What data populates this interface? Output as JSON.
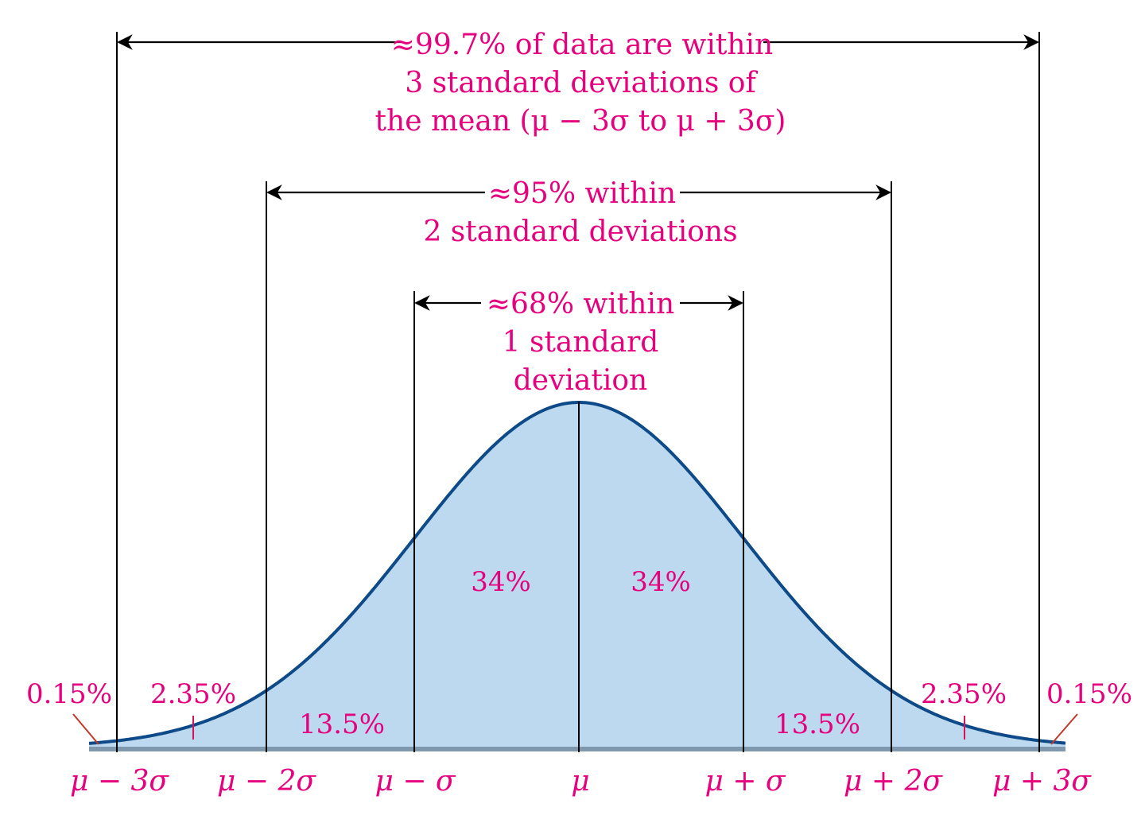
{
  "colors": {
    "label": "#e6007e",
    "curve_fill": "#bcd9ef",
    "curve_stroke": "#0d4a87",
    "lines": "#000000",
    "baseline": "#7f98ad"
  },
  "brackets": {
    "b3": {
      "lines": [
        "≈99.7% of data are within",
        "3 standard deviations of",
        "the mean (μ − 3σ to μ + 3σ)"
      ]
    },
    "b2": {
      "lines": [
        "≈95% within",
        "2 standard deviations"
      ]
    },
    "b1": {
      "lines": [
        "≈68% within",
        "1 standard",
        "deviation"
      ]
    }
  },
  "regions": [
    {
      "id": "tail-left",
      "label": "0.15%"
    },
    {
      "id": "band-left-2-3",
      "label": "2.35%"
    },
    {
      "id": "band-left-1-2",
      "label": "13.5%"
    },
    {
      "id": "band-left-0-1",
      "label": "34%"
    },
    {
      "id": "band-right-0-1",
      "label": "34%"
    },
    {
      "id": "band-right-1-2",
      "label": "13.5%"
    },
    {
      "id": "band-right-2-3",
      "label": "2.35%"
    },
    {
      "id": "tail-right",
      "label": "0.15%"
    }
  ],
  "axis_ticks": [
    "μ − 3σ",
    "μ − 2σ",
    "μ − σ",
    "μ",
    "μ + σ",
    "μ + 2σ",
    "μ + 3σ"
  ]
}
